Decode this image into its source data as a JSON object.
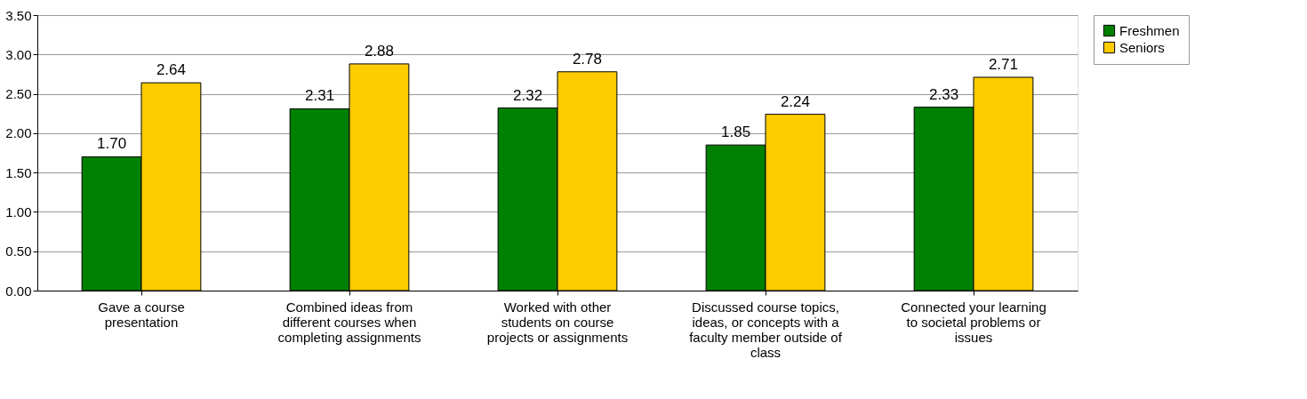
{
  "chart_data": {
    "type": "bar",
    "categories": [
      "Gave a course presentation",
      "Combined ideas from different courses when completing assignments",
      "Worked with other students on course projects or assignments",
      "Discussed course topics, ideas, or concepts with a faculty member outside of class",
      "Connected your learning to societal problems or issues"
    ],
    "series": [
      {
        "name": "Freshmen",
        "color": "#008000",
        "values": [
          1.7,
          2.31,
          2.32,
          1.85,
          2.33
        ],
        "value_labels": [
          "1.70",
          "2.31",
          "2.32",
          "1.85",
          "2.33"
        ]
      },
      {
        "name": "Seniors",
        "color": "#ffcc00",
        "values": [
          2.64,
          2.88,
          2.78,
          2.24,
          2.71
        ],
        "value_labels": [
          "2.64",
          "2.88",
          "2.78",
          "2.24",
          "2.71"
        ]
      }
    ],
    "ylim": [
      0,
      3.5
    ],
    "yticks": [
      {
        "value": 0,
        "label": "0.00"
      },
      {
        "value": 0.5,
        "label": "0.50"
      },
      {
        "value": 1,
        "label": "1.00"
      },
      {
        "value": 1.5,
        "label": "1.50"
      },
      {
        "value": 2,
        "label": "2.00"
      },
      {
        "value": 2.5,
        "label": "2.50"
      },
      {
        "value": 3,
        "label": "3.00"
      },
      {
        "value": 3.5,
        "label": "3.50"
      }
    ],
    "grid": "y",
    "legend": "right"
  }
}
